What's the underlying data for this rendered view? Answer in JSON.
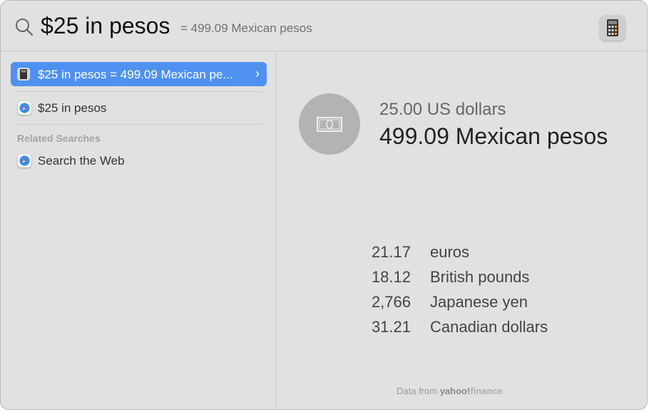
{
  "search": {
    "query": "$25 in pesos",
    "inline_result": "= 499.09 Mexican pesos",
    "app_icon": "calculator-icon"
  },
  "results": {
    "selected": {
      "label": "$25 in pesos = 499.09 Mexican pe...",
      "icon": "calculator-icon"
    },
    "web": {
      "label": "$25 in pesos",
      "icon": "safari-icon"
    },
    "section_label": "Related Searches",
    "related": [
      {
        "label": "Search the Web",
        "icon": "safari-icon"
      }
    ]
  },
  "preview": {
    "icon": "banknote-icon",
    "from": "25.00 US dollars",
    "to": "499.09 Mexican pesos",
    "rates": [
      {
        "value": "21.17",
        "name": "euros"
      },
      {
        "value": "18.12",
        "name": "British pounds"
      },
      {
        "value": "2,766",
        "name": "Japanese yen"
      },
      {
        "value": "31.21",
        "name": "Canadian dollars"
      }
    ],
    "source_prefix": "Data from",
    "source_brand": "yahoo!",
    "source_brand_suffix": "finance"
  },
  "colors": {
    "selection": "#4f91f0",
    "background": "#e1e1e1"
  }
}
